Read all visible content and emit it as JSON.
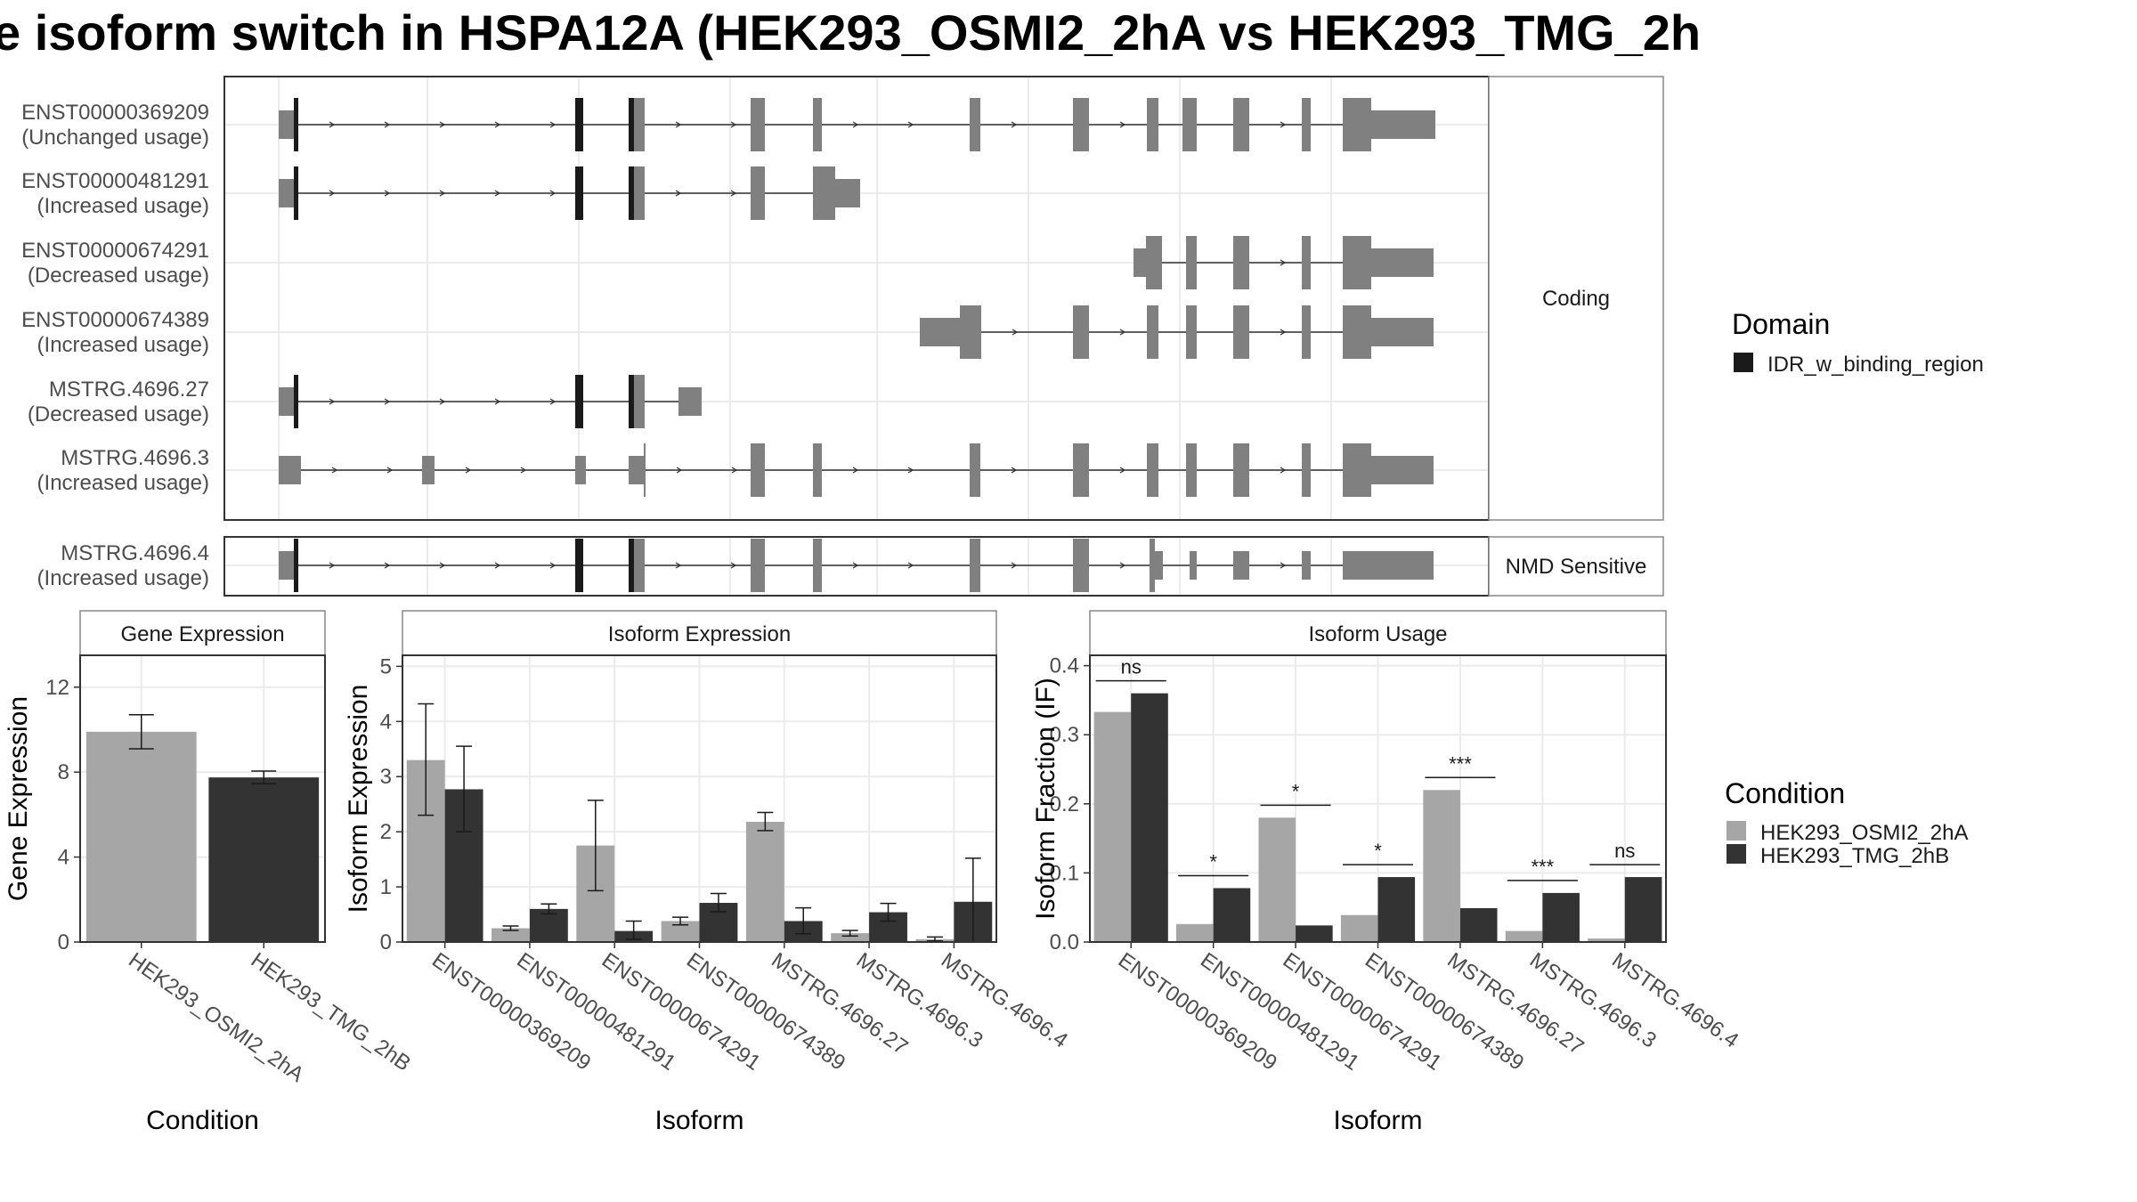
{
  "title": "e isoform switch in HSPA12A (HEK293_OSMI2_2hA vs HEK293_TMG_2h",
  "colors": {
    "osmi": "#a6a6a6",
    "tmg": "#333333",
    "exon": "#808080",
    "domain": "#1a1a1a",
    "panel_border": "#333333",
    "grid": "#ebebeb",
    "strip_fill": "#ffffff"
  },
  "structure": {
    "groups": [
      {
        "label": "Coding",
        "transcripts": [
          {
            "name": "ENST00000369209",
            "usage": "(Unchanged usage)"
          },
          {
            "name": "ENST00000481291",
            "usage": "(Increased usage)"
          },
          {
            "name": "ENST00000674291",
            "usage": "(Decreased usage)"
          },
          {
            "name": "ENST00000674389",
            "usage": "(Increased usage)"
          },
          {
            "name": "MSTRG.4696.27",
            "usage": "(Decreased usage)"
          },
          {
            "name": "MSTRG.4696.3",
            "usage": "(Increased usage)"
          }
        ]
      },
      {
        "label": "NMD Sensitive",
        "transcripts": [
          {
            "name": "MSTRG.4696.4",
            "usage": "(Increased usage)"
          }
        ]
      }
    ]
  },
  "legend_domain": {
    "title": "Domain",
    "items": [
      "IDR_w_binding_region"
    ],
    "icon": "filled-square"
  },
  "legend_condition": {
    "title": "Condition",
    "items": [
      "HEK293_OSMI2_2hA",
      "HEK293_TMG_2hB"
    ],
    "icon": "filled-square"
  },
  "chart_data": [
    {
      "type": "bar",
      "title": "Gene Expression",
      "xlabel": "Condition",
      "ylabel": "Gene Expression",
      "ylim": [
        0,
        13.5
      ],
      "yticks": [
        "0",
        "4",
        "8",
        "12"
      ],
      "grid": true,
      "categories": [
        "HEK293_OSMI2_2hA",
        "HEK293_TMG_2hB"
      ],
      "values": [
        9.9,
        7.75
      ],
      "err_low": [
        9.1,
        7.45
      ],
      "err_high": [
        10.7,
        8.05
      ]
    },
    {
      "type": "bar",
      "title": "Isoform Expression",
      "xlabel": "Isoform",
      "ylabel": "Isoform Expression",
      "ylim": [
        0,
        5.2
      ],
      "yticks": [
        "0",
        "1",
        "2",
        "3",
        "4",
        "5"
      ],
      "grid": true,
      "categories": [
        "ENST00000369209",
        "ENST00000481291",
        "ENST00000674291",
        "ENST00000674389",
        "MSTRG.4696.27",
        "MSTRG.4696.3",
        "MSTRG.4696.4"
      ],
      "series": [
        {
          "name": "HEK293_OSMI2_2hA",
          "values": [
            3.3,
            0.25,
            1.75,
            0.38,
            2.18,
            0.16,
            0.05
          ],
          "err_low": [
            2.3,
            0.21,
            0.93,
            0.31,
            2.02,
            0.11,
            0.02
          ],
          "err_high": [
            4.32,
            0.29,
            2.57,
            0.45,
            2.35,
            0.21,
            0.09
          ]
        },
        {
          "name": "HEK293_TMG_2hB",
          "values": [
            2.77,
            0.6,
            0.2,
            0.71,
            0.38,
            0.54,
            0.73
          ],
          "err_low": [
            2.0,
            0.51,
            0.05,
            0.55,
            0.15,
            0.38,
            0.0
          ],
          "err_high": [
            3.55,
            0.69,
            0.38,
            0.88,
            0.62,
            0.7,
            1.52
          ]
        }
      ]
    },
    {
      "type": "bar",
      "title": "Isoform Usage",
      "xlabel": "Isoform",
      "ylabel": "Isoform Fraction (IF)",
      "ylim": [
        0,
        0.415
      ],
      "yticks": [
        "0.0",
        "0.1",
        "0.2",
        "0.3",
        "0.4"
      ],
      "grid": true,
      "categories": [
        "ENST00000369209",
        "ENST00000481291",
        "ENST00000674291",
        "ENST00000674389",
        "MSTRG.4696.27",
        "MSTRG.4696.3",
        "MSTRG.4696.4"
      ],
      "series": [
        {
          "name": "HEK293_OSMI2_2hA",
          "values": [
            0.333,
            0.026,
            0.18,
            0.039,
            0.22,
            0.016,
            0.005
          ]
        },
        {
          "name": "HEK293_TMG_2hB",
          "values": [
            0.36,
            0.078,
            0.024,
            0.094,
            0.049,
            0.071,
            0.094
          ]
        }
      ],
      "significance": [
        "ns",
        "*",
        "*",
        "*",
        "***",
        "***",
        "ns"
      ]
    }
  ]
}
